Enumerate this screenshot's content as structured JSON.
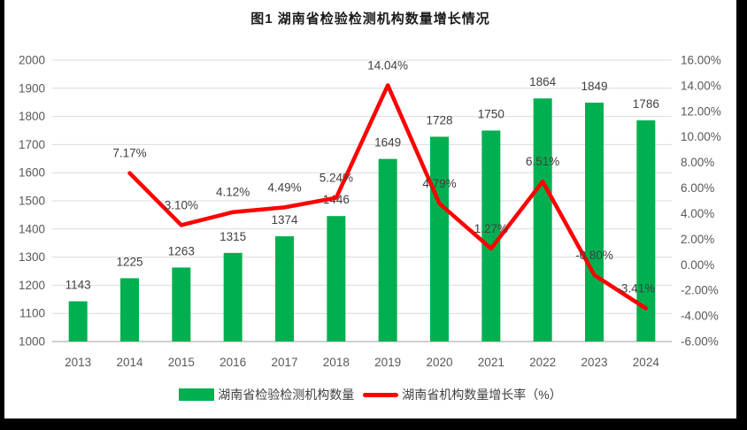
{
  "title": "图1 湖南省检验检测机构数量增长情况",
  "legend": {
    "bar_label": "湖南省检验检测机构数量",
    "line_label": "湖南省机构数量增长率（%）"
  },
  "colors": {
    "bar": "#00B050",
    "line": "#FF0000",
    "gridline": "#DCDCDC",
    "axis_line": "#BFBFBF",
    "tick_label": "#595959",
    "data_label": "#404040",
    "background": "#FFFFFF",
    "outer_background": "#000000"
  },
  "chart_data": {
    "type": "bar+line",
    "title": "图1 湖南省检验检测机构数量增长情况",
    "categories": [
      "2013",
      "2014",
      "2015",
      "2016",
      "2017",
      "2018",
      "2019",
      "2020",
      "2021",
      "2022",
      "2023",
      "2024"
    ],
    "series": [
      {
        "name": "湖南省检验检测机构数量",
        "type": "bar",
        "axis": "left",
        "color": "#00B050",
        "values": [
          1143,
          1225,
          1263,
          1315,
          1374,
          1446,
          1649,
          1728,
          1750,
          1864,
          1849,
          1786
        ],
        "labels": [
          "1143",
          "1225",
          "1263",
          "1315",
          "1374",
          "1446",
          "1649",
          "1728",
          "1750",
          "1864",
          "1849",
          "1786"
        ]
      },
      {
        "name": "湖南省机构数量增长率（%）",
        "type": "line",
        "axis": "right",
        "color": "#FF0000",
        "values": [
          null,
          7.17,
          3.1,
          4.12,
          4.49,
          5.24,
          14.04,
          4.79,
          1.27,
          6.51,
          -0.8,
          -3.41
        ],
        "labels": [
          "",
          "7.17%",
          "3.10%",
          "4.12%",
          "4.49%",
          "5.24%",
          "14.04%",
          "4.79%",
          "1.27%",
          "6.51%",
          "-0.80%",
          "-3.41%"
        ]
      }
    ],
    "left_axis": {
      "min": 1000,
      "max": 2000,
      "step": 100,
      "tick_labels": [
        "2000",
        "1900",
        "1800",
        "1700",
        "1600",
        "1500",
        "1400",
        "1300",
        "1200",
        "1100",
        "1000"
      ]
    },
    "right_axis": {
      "min": -6,
      "max": 16,
      "step": 2,
      "tick_labels": [
        "16.00%",
        "14.00%",
        "12.00%",
        "10.00%",
        "8.00%",
        "6.00%",
        "4.00%",
        "2.00%",
        "0.00%",
        "-2.00%",
        "-4.00%",
        "-6.00%"
      ]
    },
    "grid": true,
    "legend_position": "bottom"
  }
}
